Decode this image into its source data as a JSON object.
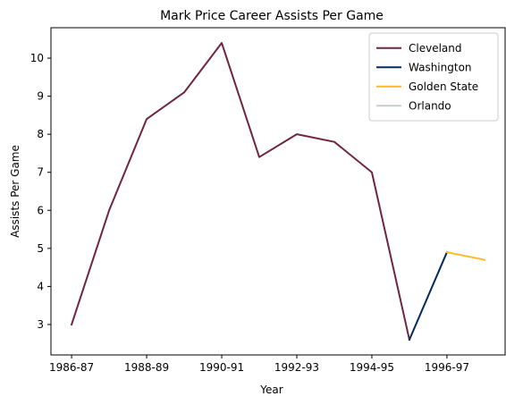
{
  "chart_data": {
    "type": "line",
    "title": "Mark Price Career Assists Per Game",
    "xlabel": "Year",
    "ylabel": "Assists Per Game",
    "x_categories": [
      "1986-87",
      "1987-88",
      "1988-89",
      "1989-90",
      "1990-91",
      "1991-92",
      "1992-93",
      "1993-94",
      "1994-95",
      "1995-96",
      "1996-97",
      "1997-98"
    ],
    "x_tick_labels": [
      {
        "index": 0,
        "label": "1986-87"
      },
      {
        "index": 2,
        "label": "1988-89"
      },
      {
        "index": 4,
        "label": "1990-91"
      },
      {
        "index": 6,
        "label": "1992-93"
      },
      {
        "index": 8,
        "label": "1994-95"
      },
      {
        "index": 10,
        "label": "1996-97"
      }
    ],
    "y_ticks": [
      3,
      4,
      5,
      6,
      7,
      8,
      9,
      10
    ],
    "ylim": [
      2.2,
      10.8
    ],
    "xlim": [
      -0.55,
      11.55
    ],
    "grid": false,
    "legend_position": "top-right",
    "series": [
      {
        "name": "Cleveland",
        "color": "#6f263d",
        "points": [
          [
            0,
            3.0
          ],
          [
            1,
            6.0
          ],
          [
            2,
            8.4
          ],
          [
            3,
            9.1
          ],
          [
            4,
            10.4
          ],
          [
            5,
            7.4
          ],
          [
            6,
            8.0
          ],
          [
            7,
            7.8
          ],
          [
            8,
            7.0
          ],
          [
            9,
            2.6
          ]
        ]
      },
      {
        "name": "Washington",
        "color": "#002b5c",
        "points": [
          [
            9,
            2.6
          ],
          [
            10,
            4.9
          ]
        ]
      },
      {
        "name": "Golden State",
        "color": "#fdb927",
        "points": [
          [
            10,
            4.9
          ],
          [
            11,
            4.7
          ]
        ]
      },
      {
        "name": "Orlando",
        "color": "#c4ced4",
        "points": []
      }
    ]
  }
}
